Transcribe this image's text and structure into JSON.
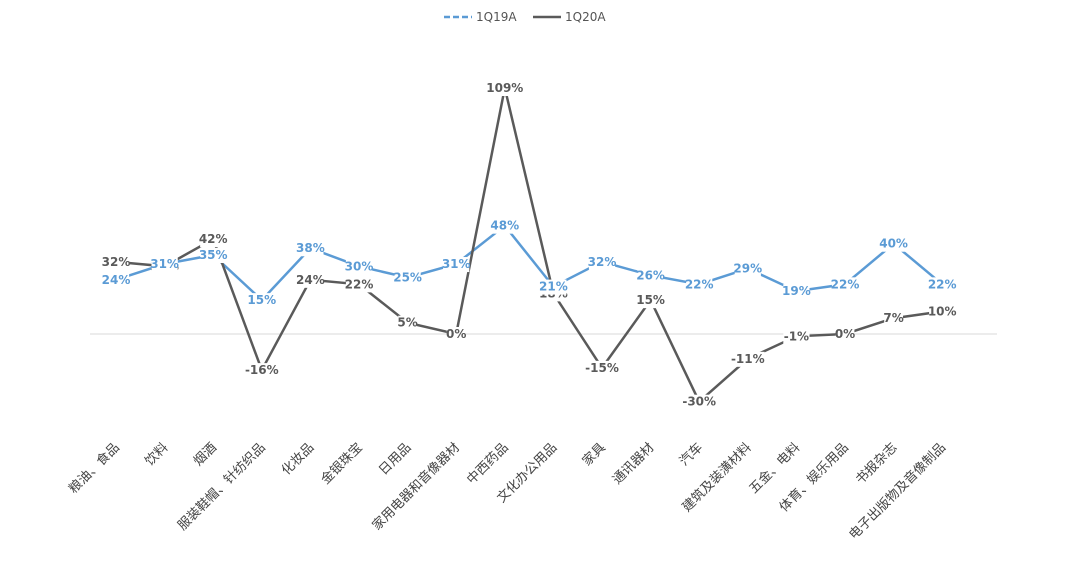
{
  "chart_data": {
    "type": "line",
    "title": "",
    "xlabel": "",
    "ylabel": "",
    "ylim": [
      -40,
      110
    ],
    "grid": false,
    "legend_position": "top-center",
    "categories": [
      "粮油、食品",
      "饮料",
      "烟酒",
      "服装鞋帽、针纺织品",
      "化妆品",
      "金银珠宝",
      "日用品",
      "家用电器和音像器材",
      "中西药品",
      "文化办公用品",
      "家具",
      "通讯器材",
      "汽车",
      "建筑及装潢材料",
      "五金、电料",
      "体育、娱乐用品",
      "书报杂志",
      "电子出版物及音像制品"
    ],
    "series": [
      {
        "name": "1Q19A",
        "color": "#5b9bd5",
        "dashed": true,
        "values": [
          24,
          31,
          35,
          15,
          38,
          30,
          25,
          31,
          48,
          21,
          32,
          26,
          22,
          29,
          19,
          22,
          40,
          22
        ],
        "labels": [
          "24%",
          "31%",
          "35%",
          "15%",
          "38%",
          "30%",
          "25%",
          "31%",
          "48%",
          "21%",
          "32%",
          "26%",
          "22%",
          "29%",
          "19%",
          "22%",
          "40%",
          "22%"
        ]
      },
      {
        "name": "1Q20A",
        "color": "#5a5a5a",
        "dashed": false,
        "values": [
          32,
          30,
          42,
          -16,
          24,
          22,
          5,
          0,
          109,
          18,
          -15,
          15,
          -30,
          -11,
          -1,
          0,
          7,
          10
        ],
        "labels": [
          "32%",
          "30%",
          "42%",
          "-16%",
          "24%",
          "22%",
          "5%",
          "0%",
          "109%",
          "18%",
          "-15%",
          "15%",
          "-30%",
          "-11%",
          "-1%",
          "0%",
          "7%",
          "10%"
        ]
      }
    ]
  }
}
